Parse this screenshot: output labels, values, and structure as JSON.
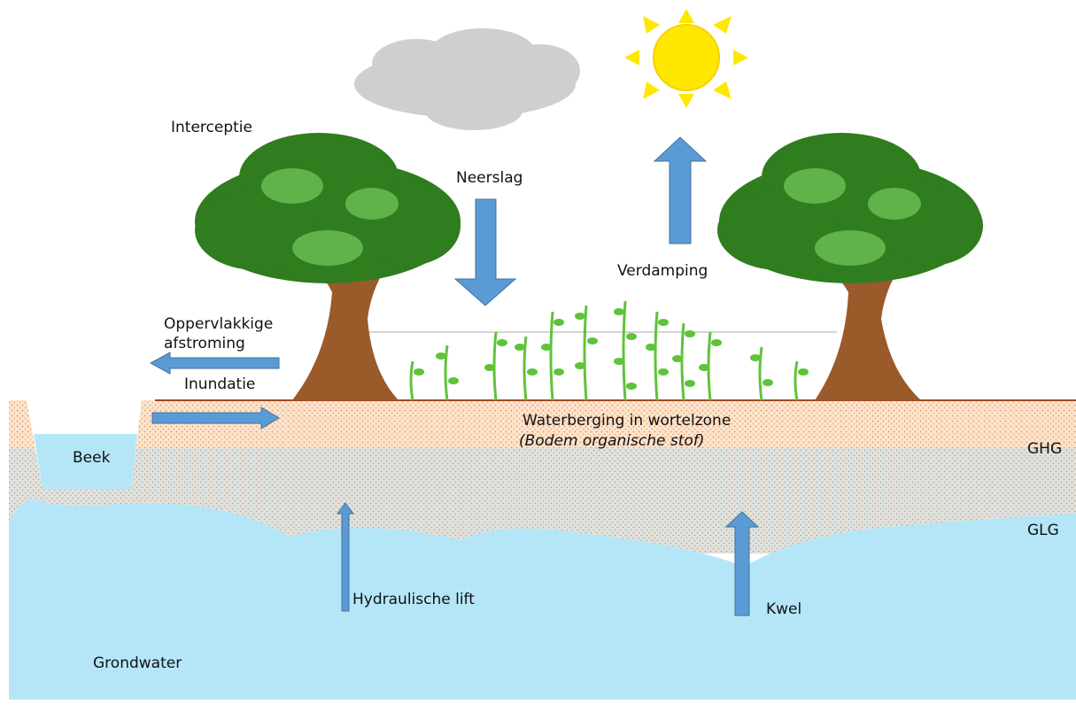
{
  "labels": {
    "interceptie": "Interceptie",
    "neerslag": "Neerslag",
    "verdamping": "Verdamping",
    "oppervlakkige": "Oppervlakkige",
    "afstroming": "afstroming",
    "inundatie": "Inundatie",
    "waterberging": "Waterberging in wortelzone",
    "bodem": "(Bodem organische stof)",
    "beek": "Beek",
    "ghg": "GHG",
    "glg": "GLG",
    "hydraulische_lift": "Hydraulische lift",
    "kwel": "Kwel",
    "grondwater": "Grondwater"
  }
}
